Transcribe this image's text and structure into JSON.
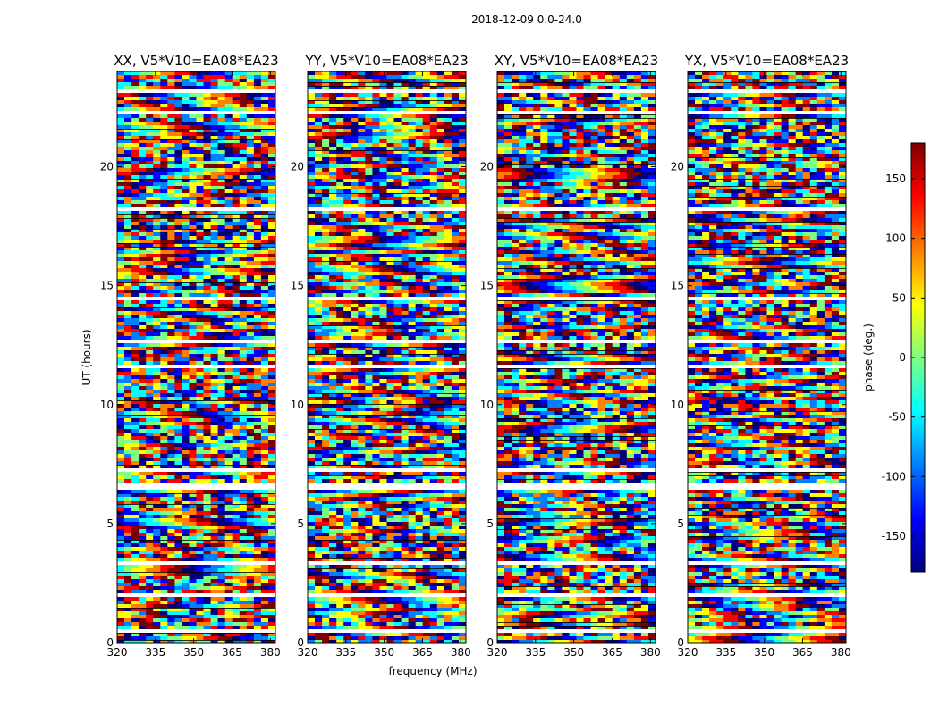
{
  "chart_data": {
    "type": "heatmap",
    "suptitle": "2018-12-09 0.0-24.0",
    "xlabel": "frequency (MHz)",
    "ylabel": "UT (hours)",
    "xlim": [
      320,
      382
    ],
    "ylim": [
      0,
      24
    ],
    "xticks": [
      320,
      335,
      350,
      365,
      380
    ],
    "yticks": [
      0,
      5,
      10,
      15,
      20
    ],
    "panels": [
      {
        "title": "XX, V5*V10=EA08*EA23"
      },
      {
        "title": "YY, V5*V10=EA08*EA23"
      },
      {
        "title": "XY, V5*V10=EA08*EA23"
      },
      {
        "title": "YX, V5*V10=EA08*EA23"
      }
    ],
    "colorbar": {
      "label": "phase (deg.)",
      "range": [
        -180,
        180
      ],
      "ticks": [
        -150,
        -100,
        -50,
        0,
        50,
        100,
        150
      ],
      "colormap": "jet",
      "colors": [
        "#00007f",
        "#0000ff",
        "#007fff",
        "#00ffff",
        "#7fff7f",
        "#ffff00",
        "#ff7f00",
        "#ff0000",
        "#7f0000"
      ]
    },
    "blank_time_bands_hours": [
      [
        0.45,
        0.6
      ],
      [
        2.0,
        2.1
      ],
      [
        3.35,
        3.45
      ],
      [
        6.55,
        6.75
      ],
      [
        7.3,
        7.4
      ],
      [
        8.1,
        8.2
      ],
      [
        11.65,
        11.8
      ],
      [
        12.7,
        12.85
      ],
      [
        14.5,
        14.6
      ],
      [
        18.2,
        18.3
      ],
      [
        21.3,
        21.4
      ],
      [
        22.3,
        22.4
      ],
      [
        23.2,
        23.3
      ]
    ]
  }
}
